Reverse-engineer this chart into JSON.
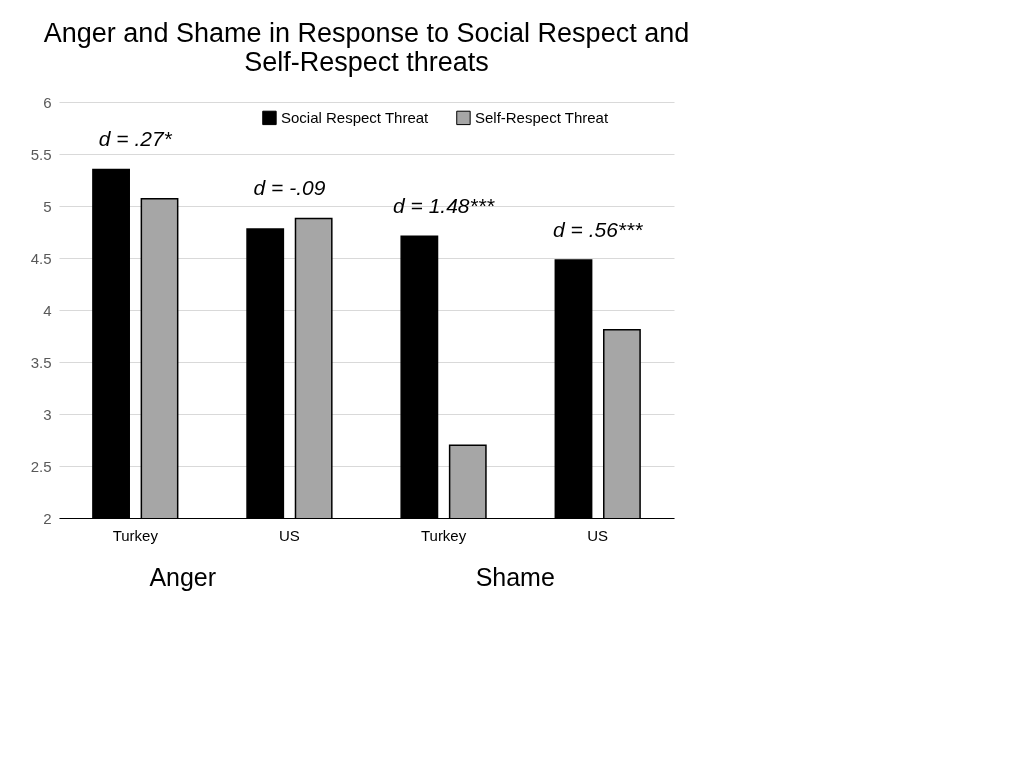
{
  "chart_data": {
    "type": "bar",
    "title": "Anger and Shame in Response to Social Respect and Self-Respect threats",
    "categories": [
      "Turkey",
      "US",
      "Turkey",
      "US"
    ],
    "series": [
      {
        "name": "Social Respect Threat",
        "color": "#000000",
        "values": [
          5.35,
          4.78,
          4.71,
          4.48
        ]
      },
      {
        "name": "Self-Respect Threat",
        "color": "#a6a6a6",
        "values": [
          5.07,
          4.88,
          2.7,
          3.81
        ]
      }
    ],
    "ylim": [
      2,
      6
    ],
    "yticks": [
      2,
      2.5,
      3,
      3.5,
      4,
      4.5,
      5,
      5.5,
      6
    ],
    "grid": "y",
    "legend": "top",
    "annotations": [
      "d = .27*",
      "d = -.09",
      "d = 1.48***",
      "d = .56***",
      "Anger",
      "Shame"
    ]
  }
}
